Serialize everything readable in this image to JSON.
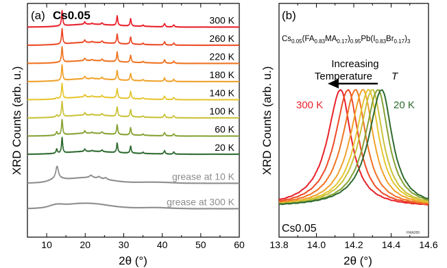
{
  "chart_data": [
    {
      "type": "line",
      "panel_label": "(a)",
      "title": "Cs0.05",
      "xlabel": "2θ (°)",
      "ylabel": "XRD Counts (arb. u.)",
      "xlim": [
        5,
        60
      ],
      "xticks": [
        10,
        20,
        30,
        40,
        50,
        60
      ],
      "grid": false,
      "peak_positions": [
        12.6,
        14.0,
        19.9,
        24.4,
        28.3,
        31.8,
        35.0,
        40.6,
        43.0
      ],
      "series": [
        {
          "name": "300 K",
          "color": "#e8202a",
          "offset": 11
        },
        {
          "name": "260 K",
          "color": "#ec4a26",
          "offset": 10
        },
        {
          "name": "220 K",
          "color": "#ef7322",
          "offset": 9
        },
        {
          "name": "180 K",
          "color": "#f0a12b",
          "offset": 8
        },
        {
          "name": "140 K",
          "color": "#e6c630",
          "offset": 7
        },
        {
          "name": "100 K",
          "color": "#c9c23a",
          "offset": 6
        },
        {
          "name": "60 K",
          "color": "#86a234",
          "offset": 5
        },
        {
          "name": "20 K",
          "color": "#2d6a2f",
          "offset": 4
        },
        {
          "name": "grease at   10 K",
          "color": "#8c8c8c",
          "offset": 2.4
        },
        {
          "name": "grease at 300 K",
          "color": "#8c8c8c",
          "offset": 1
        }
      ]
    },
    {
      "type": "line",
      "panel_label": "(b)",
      "title": "Cs0.05(FA0.83MA0.17)0.95Pb(I0.83Br0.17)3",
      "title_parts": [
        {
          "t": "Cs",
          "s": "base"
        },
        {
          "t": "0.05",
          "s": "sub"
        },
        {
          "t": "(FA",
          "s": "base"
        },
        {
          "t": "0.83",
          "s": "sub"
        },
        {
          "t": "MA",
          "s": "base"
        },
        {
          "t": "0.17",
          "s": "sub"
        },
        {
          "t": ")",
          "s": "base"
        },
        {
          "t": "0.95",
          "s": "sub"
        },
        {
          "t": "Pb(I",
          "s": "base"
        },
        {
          "t": "0.83",
          "s": "sub"
        },
        {
          "t": "Br",
          "s": "base"
        },
        {
          "t": "0.17",
          "s": "sub"
        },
        {
          "t": ")",
          "s": "base"
        },
        {
          "t": "3",
          "s": "sub"
        }
      ],
      "xlabel": "2θ (°)",
      "ylabel": "XRD Counts (arb. u.)",
      "xlim": [
        13.8,
        14.6
      ],
      "xticks": [
        "13.8",
        "14.0",
        "14.2",
        "14.4",
        "14.6"
      ],
      "grid": false,
      "annotation_line1": "Increasing",
      "annotation_line2": "Temperature",
      "annotation_symbol": "T",
      "label_high": "300 K",
      "label_low": "20 K",
      "sample_label": "Cs0.05",
      "corner_tag": "FMA289",
      "series": [
        {
          "name": "300 K",
          "color": "#e8202a",
          "peak": 14.13
        },
        {
          "name": "260 K",
          "color": "#ec4a26",
          "peak": 14.17
        },
        {
          "name": "220 K",
          "color": "#ef7322",
          "peak": 14.21
        },
        {
          "name": "180 K",
          "color": "#f0a12b",
          "peak": 14.25
        },
        {
          "name": "140 K",
          "color": "#e6c630",
          "peak": 14.28
        },
        {
          "name": "100 K",
          "color": "#c9c23a",
          "peak": 14.3
        },
        {
          "name": "60 K",
          "color": "#86a234",
          "peak": 14.33
        },
        {
          "name": "20 K",
          "color": "#2d6a2f",
          "peak": 14.35
        }
      ]
    }
  ]
}
